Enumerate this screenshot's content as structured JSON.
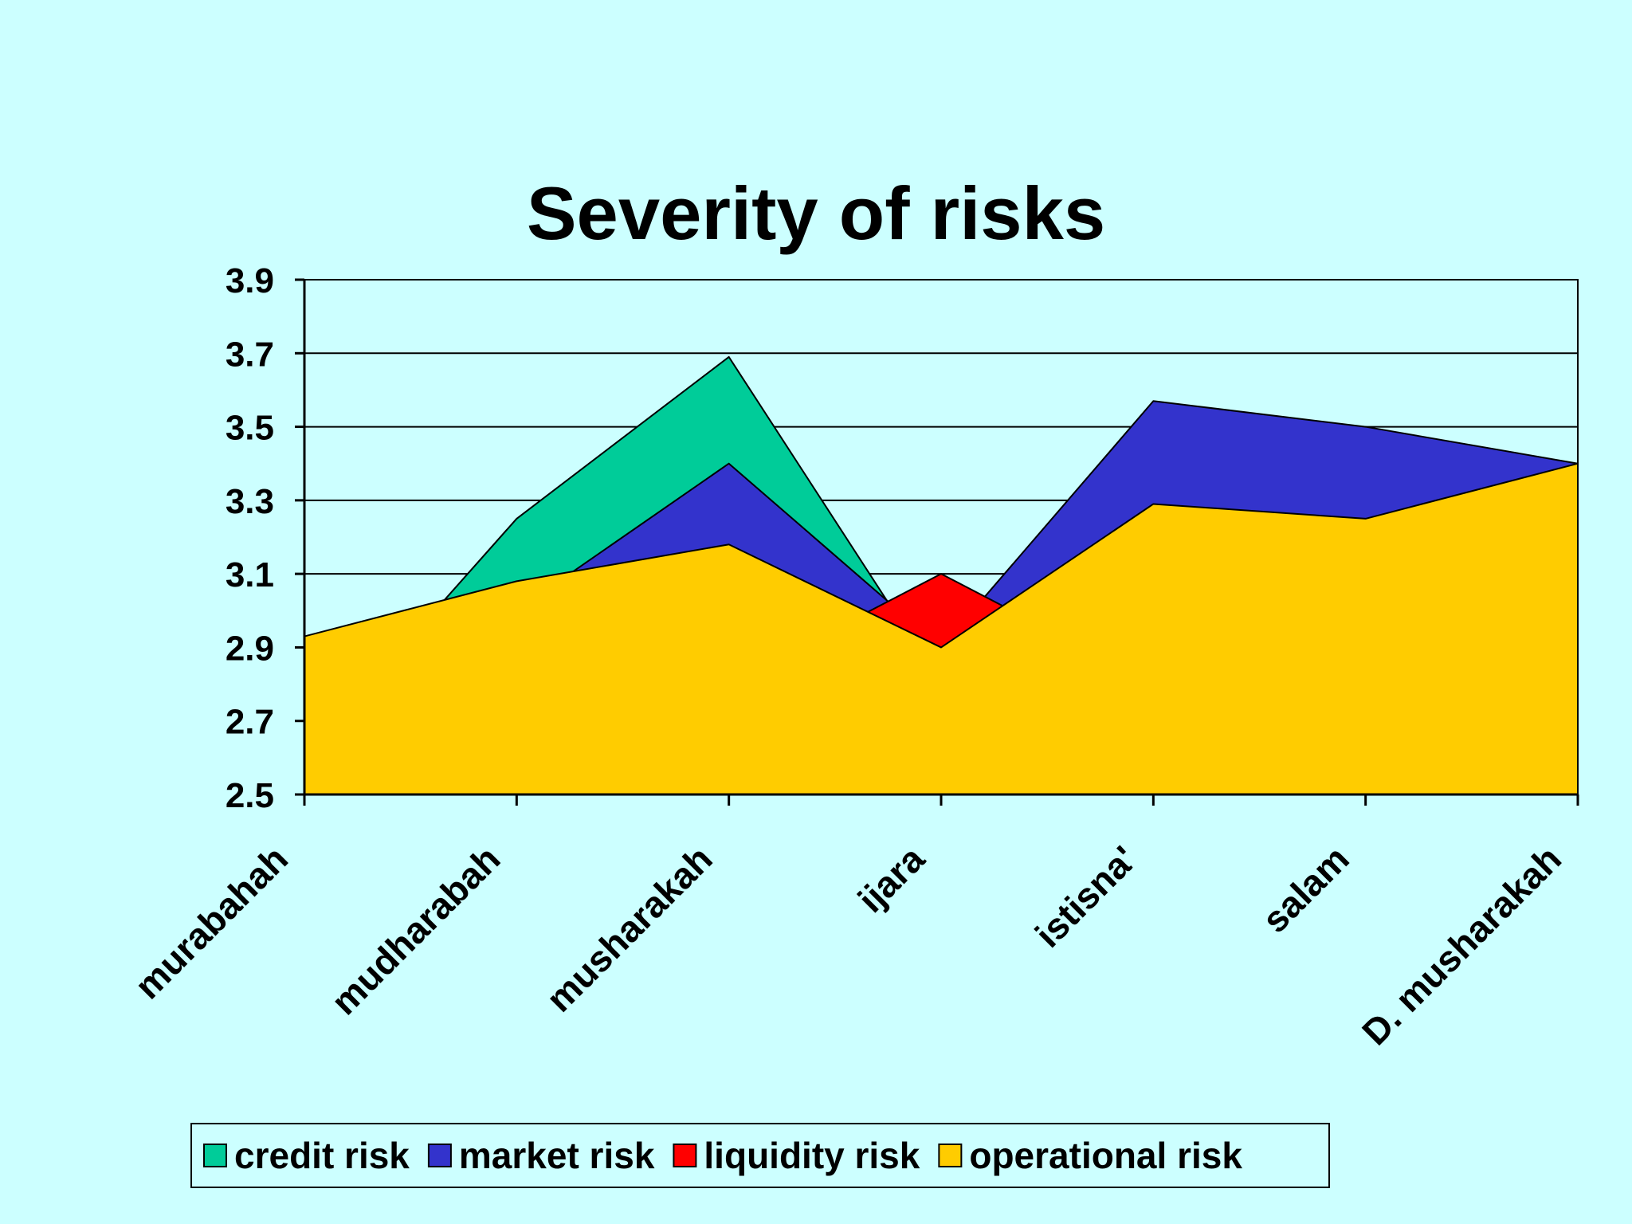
{
  "chart_data": {
    "type": "area",
    "title": "Severity of risks",
    "xlabel": "",
    "ylabel": "",
    "categories": [
      "murabahah",
      "mudharabah",
      "musharakah",
      "ijara",
      "istisna'",
      "salam",
      "D. musharakah"
    ],
    "ylim": [
      2.5,
      3.9
    ],
    "yticks": [
      "2.5",
      "2.7",
      "2.9",
      "3.1",
      "3.3",
      "3.5",
      "3.7",
      "3.9"
    ],
    "grid": true,
    "legend_position": "bottom",
    "series": [
      {
        "name": "credit risk",
        "color": "#00cc99",
        "values": [
          2.6,
          3.25,
          3.69,
          2.8,
          2.7,
          2.65,
          2.6
        ]
      },
      {
        "name": "market risk",
        "color": "#3333cc",
        "values": [
          2.7,
          3.0,
          3.4,
          2.9,
          3.57,
          3.5,
          3.4
        ]
      },
      {
        "name": "liquidity risk",
        "color": "#ff0000",
        "values": [
          2.6,
          2.5,
          2.8,
          3.1,
          2.8,
          2.7,
          2.6
        ]
      },
      {
        "name": "operational risk",
        "color": "#ffcc00",
        "values": [
          2.93,
          3.08,
          3.18,
          2.9,
          3.29,
          3.25,
          3.4
        ]
      }
    ]
  }
}
